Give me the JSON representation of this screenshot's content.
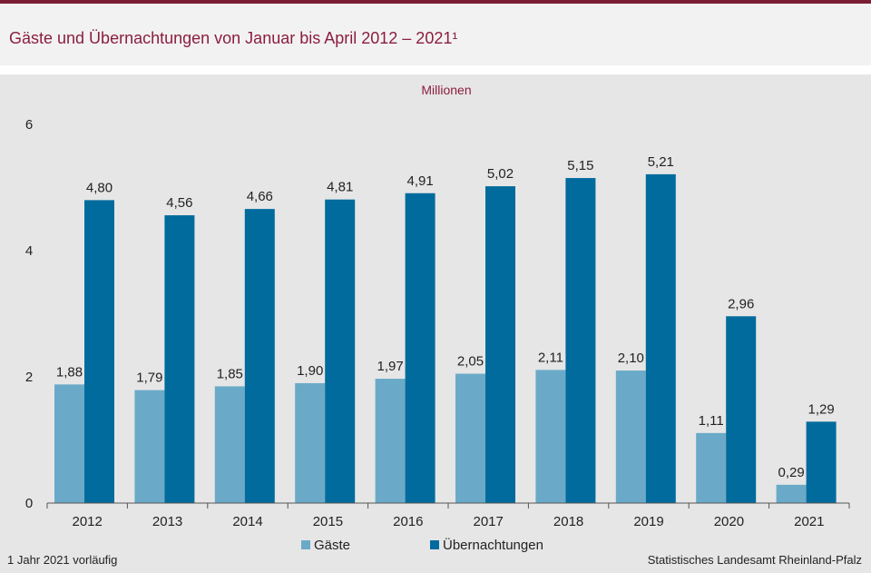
{
  "header": {
    "title": "Gäste und Übernachtungen von Januar bis April 2012 – 2021¹"
  },
  "footer": {
    "footnote": "1 Jahr 2021 vorläufig",
    "source": "Statistisches Landesamt  Rheinland-Pfalz"
  },
  "colors": {
    "gaeste": "#6aaac8",
    "uebernachtungen": "#006b9c",
    "title": "#8b1e3f"
  },
  "chart_data": {
    "type": "bar",
    "unit_label": "Millionen",
    "categories": [
      "2012",
      "2013",
      "2014",
      "2015",
      "2016",
      "2017",
      "2018",
      "2019",
      "2020",
      "2021"
    ],
    "series": [
      {
        "name": "Gäste",
        "values": [
          1.88,
          1.79,
          1.85,
          1.9,
          1.97,
          2.05,
          2.11,
          2.1,
          1.11,
          0.29
        ],
        "labels": [
          "1,88",
          "1,79",
          "1,85",
          "1,90",
          "1,97",
          "2,05",
          "2,11",
          "2,10",
          "1,11",
          "0,29"
        ]
      },
      {
        "name": "Übernachtungen",
        "values": [
          4.8,
          4.56,
          4.66,
          4.81,
          4.91,
          5.02,
          5.15,
          5.21,
          2.96,
          1.29
        ],
        "labels": [
          "4,80",
          "4,56",
          "4,66",
          "4,81",
          "4,91",
          "5,02",
          "5,15",
          "5,21",
          "2,96",
          "1,29"
        ]
      }
    ],
    "yticks": [
      "0",
      "2",
      "4",
      "6"
    ],
    "ylim": [
      0,
      6
    ],
    "grid": false,
    "legend_position": "bottom-center"
  }
}
